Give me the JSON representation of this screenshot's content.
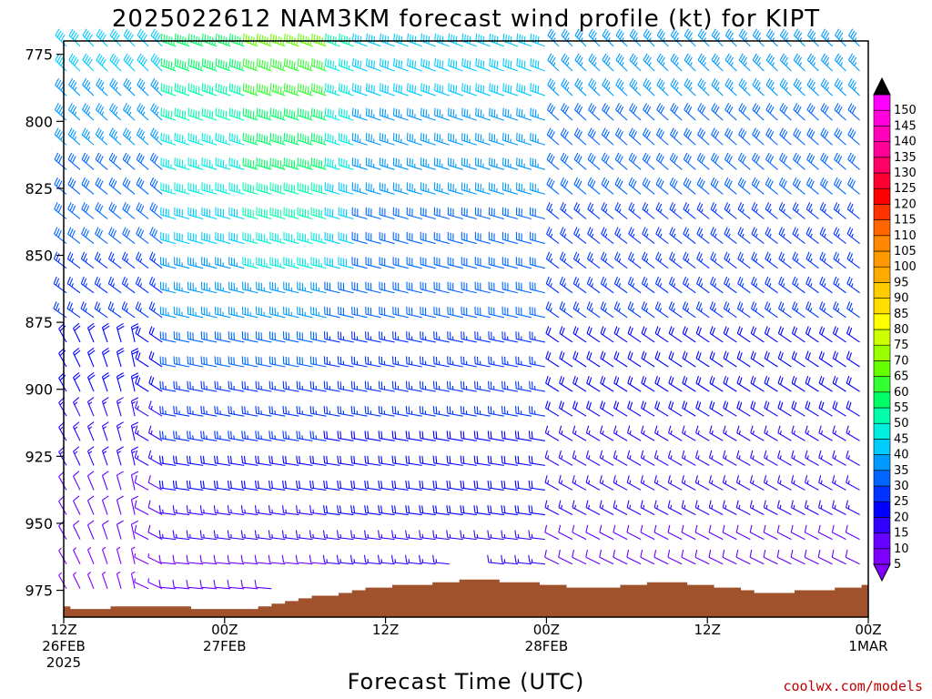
{
  "chart_data": {
    "type": "wind-profile",
    "title": "2025022612 NAM3KM forecast wind profile (kt) for KIPT",
    "xlabel": "Forecast Time (UTC)",
    "ylabel": "",
    "credit": "coolwx.com/models",
    "ylim": [
      985,
      770
    ],
    "y_ticks": [
      775,
      800,
      825,
      850,
      875,
      900,
      925,
      950,
      975
    ],
    "x_ticks": [
      {
        "hour": 0,
        "line1": "12Z",
        "line2": "26FEB",
        "line3": "2025"
      },
      {
        "hour": 12,
        "line1": "00Z",
        "line2": "27FEB",
        "line3": ""
      },
      {
        "hour": 24,
        "line1": "12Z",
        "line2": "",
        "line3": ""
      },
      {
        "hour": 36,
        "line1": "00Z",
        "line2": "28FEB",
        "line3": ""
      },
      {
        "hour": 48,
        "line1": "12Z",
        "line2": "",
        "line3": ""
      },
      {
        "hour": 60,
        "line1": "00Z",
        "line2": "1MAR",
        "line3": ""
      }
    ],
    "xlim": [
      0,
      60
    ],
    "terrain_pressure": [
      981,
      982,
      982,
      982,
      981,
      981,
      981,
      981,
      981,
      981,
      982,
      982,
      982,
      982,
      982,
      981,
      980,
      979,
      978,
      977,
      977,
      976,
      975,
      974,
      974,
      973,
      973,
      973,
      972,
      972,
      971,
      971,
      971,
      972,
      972,
      972,
      973,
      973,
      974,
      974,
      974,
      974,
      973,
      973,
      972,
      972,
      972,
      973,
      973,
      974,
      974,
      975,
      976,
      976,
      976,
      975,
      975,
      975,
      974,
      974,
      973
    ],
    "colorbar": {
      "levels": [
        5,
        10,
        15,
        20,
        25,
        30,
        35,
        40,
        45,
        50,
        55,
        60,
        65,
        70,
        75,
        80,
        85,
        90,
        95,
        100,
        105,
        110,
        115,
        120,
        125,
        130,
        135,
        140,
        145,
        150
      ],
      "colors": [
        "#7f00ff",
        "#6600ff",
        "#3300ff",
        "#0000ff",
        "#0033ff",
        "#0066ff",
        "#0099ff",
        "#00ccff",
        "#00eedd",
        "#00ffaa",
        "#00ff66",
        "#33ff33",
        "#66ff00",
        "#99ff00",
        "#ccff00",
        "#ffff00",
        "#ffdd00",
        "#ffcc00",
        "#ffaa00",
        "#ff9900",
        "#ff8800",
        "#ff6600",
        "#ff3300",
        "#ff0000",
        "#ff0033",
        "#ff0066",
        "#ff0099",
        "#ff00bb",
        "#ff00dd",
        "#ff00ff"
      ]
    },
    "wind_regimes": [
      {
        "hours": [
          0,
          8
        ],
        "speed_kt": [
          5,
          40
        ],
        "direction": "northwest"
      },
      {
        "hours": [
          8,
          20
        ],
        "speed_kt": [
          10,
          55
        ],
        "direction": "west-northwest"
      },
      {
        "hours": [
          20,
          36
        ],
        "speed_kt": [
          15,
          40
        ],
        "direction": "west-northwest"
      },
      {
        "hours": [
          36,
          60
        ],
        "speed_kt": [
          10,
          35
        ],
        "direction": "northwest"
      }
    ]
  },
  "colors": {
    "terrain": "#a0522d",
    "frame": "#000000"
  }
}
